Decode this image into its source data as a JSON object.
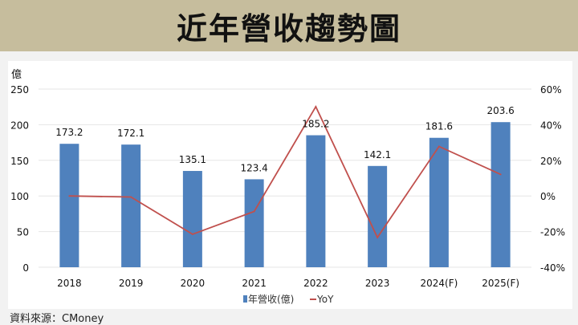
{
  "header": {
    "title": "近年營收趨勢圖"
  },
  "source": "資料來源：CMoney",
  "chart_data": {
    "type": "bar+line",
    "categories": [
      "2018",
      "2019",
      "2020",
      "2021",
      "2022",
      "2023",
      "2024(F)",
      "2025(F)"
    ],
    "series": [
      {
        "name": "年營收(億)",
        "type": "bar",
        "axis": "left",
        "color": "#4f81bd",
        "values": [
          173.2,
          172.1,
          135.1,
          123.4,
          185.2,
          142.1,
          181.6,
          203.6
        ],
        "labels": [
          "173.2",
          "172.1",
          "135.1",
          "123.4",
          "185.2",
          "142.1",
          "181.6",
          "203.6"
        ]
      },
      {
        "name": "YoY",
        "type": "line",
        "axis": "right",
        "color": "#c0504d",
        "values": [
          0,
          -0.6,
          -21.5,
          -8.7,
          50.1,
          -23.3,
          27.8,
          12.1
        ]
      }
    ],
    "left_axis": {
      "unit_label": "億",
      "ylim": [
        0,
        250
      ],
      "ticks": [
        "0",
        "50",
        "100",
        "150",
        "200",
        "250"
      ]
    },
    "right_axis": {
      "ylim": [
        -40,
        60
      ],
      "ticks": [
        "-40%",
        "-20%",
        "0%",
        "20%",
        "40%",
        "60%"
      ]
    },
    "grid": true,
    "legend": "bottom"
  }
}
